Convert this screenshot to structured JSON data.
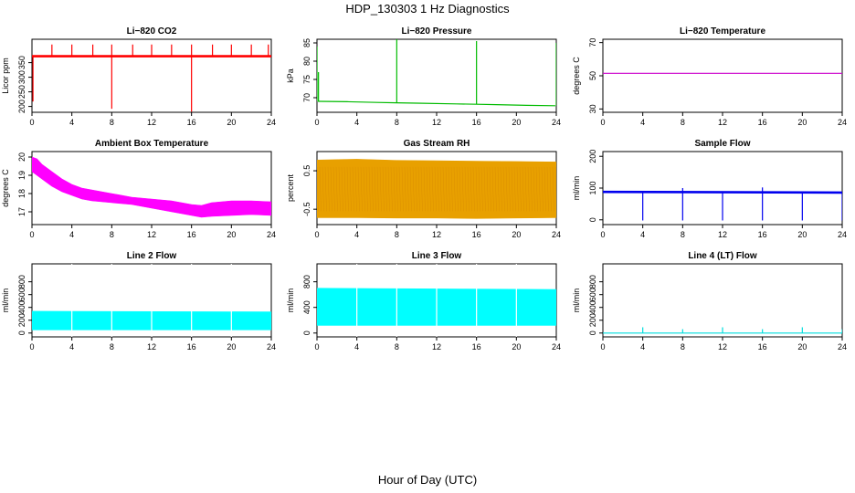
{
  "page": {
    "title": "HDP_130303  1 Hz Diagnostics",
    "xlabel": "Hour of Day (UTC)"
  },
  "chart_data": [
    {
      "type": "line",
      "title": "Li−820 CO2",
      "ylabel": "Licor ppm",
      "color": "#ff0000",
      "xlim": [
        0,
        24
      ],
      "ylim": [
        180,
        430
      ],
      "xticks": [
        0,
        4,
        8,
        12,
        16,
        20,
        24
      ],
      "yticks": [
        200,
        250,
        300,
        350
      ],
      "base": {
        "x": [
          0,
          24
        ],
        "y": [
          372,
          372
        ]
      },
      "spikes": [
        {
          "x": 0.1,
          "y": 217
        },
        {
          "x": 2.0,
          "y": 412
        },
        {
          "x": 4.0,
          "y": 412
        },
        {
          "x": 6.1,
          "y": 412
        },
        {
          "x": 8.0,
          "y": 412
        },
        {
          "x": 8.0,
          "y": 192
        },
        {
          "x": 10.1,
          "y": 412
        },
        {
          "x": 12.0,
          "y": 412
        },
        {
          "x": 14.0,
          "y": 412
        },
        {
          "x": 16.0,
          "y": 412
        },
        {
          "x": 16.0,
          "y": 182
        },
        {
          "x": 18.1,
          "y": 412
        },
        {
          "x": 20.0,
          "y": 412
        },
        {
          "x": 22.0,
          "y": 412
        },
        {
          "x": 23.7,
          "y": 412
        }
      ]
    },
    {
      "type": "line",
      "title": "Li−820 Pressure",
      "ylabel": "kPa",
      "color": "#00bb00",
      "xlim": [
        0,
        24
      ],
      "ylim": [
        66,
        86
      ],
      "xticks": [
        0,
        4,
        8,
        12,
        16,
        20,
        24
      ],
      "yticks": [
        70,
        75,
        80,
        85
      ],
      "base": {
        "x": [
          0.1,
          3,
          6,
          8,
          10,
          14,
          16,
          18,
          21,
          23.9
        ],
        "y": [
          69.0,
          68.9,
          68.7,
          68.6,
          68.5,
          68.3,
          68.2,
          68.1,
          67.9,
          67.8
        ]
      },
      "spikes": [
        {
          "x": 0.0,
          "y": 84
        },
        {
          "x": 0.15,
          "y": 77
        },
        {
          "x": 8.0,
          "y": 86
        },
        {
          "x": 16.0,
          "y": 85.5
        },
        {
          "x": 24.0,
          "y": 85
        }
      ]
    },
    {
      "type": "line",
      "title": "Li−820 Temperature",
      "ylabel": "degrees C",
      "color": "#cc00cc",
      "xlim": [
        0,
        24
      ],
      "ylim": [
        28,
        72
      ],
      "xticks": [
        0,
        4,
        8,
        12,
        16,
        20,
        24
      ],
      "yticks": [
        30,
        50,
        70
      ],
      "base": {
        "x": [
          0,
          24
        ],
        "y": [
          51.5,
          51.5
        ]
      },
      "spikes": []
    },
    {
      "type": "area",
      "title": "Ambient Box Temperature",
      "ylabel": "degrees C",
      "color": "#ff00ff",
      "xlim": [
        0,
        24
      ],
      "ylim": [
        16.3,
        20.3
      ],
      "xticks": [
        0,
        4,
        8,
        12,
        16,
        20,
        24
      ],
      "yticks": [
        17,
        18,
        19,
        20
      ],
      "band": {
        "x": [
          0,
          0.5,
          1,
          2,
          3,
          4,
          5,
          6,
          8,
          10,
          12,
          14,
          15,
          16,
          17,
          18,
          20,
          22,
          24
        ],
        "low": [
          19.2,
          19.0,
          18.8,
          18.4,
          18.1,
          17.9,
          17.7,
          17.6,
          17.5,
          17.4,
          17.2,
          17.0,
          16.9,
          16.8,
          16.7,
          16.75,
          16.8,
          16.85,
          16.8
        ],
        "high": [
          20.0,
          19.9,
          19.6,
          19.2,
          18.8,
          18.5,
          18.3,
          18.2,
          18.0,
          17.8,
          17.7,
          17.6,
          17.5,
          17.4,
          17.35,
          17.5,
          17.6,
          17.6,
          17.55
        ]
      }
    },
    {
      "type": "area",
      "title": "Gas Stream RH",
      "ylabel": "percent",
      "color": "#e8a000",
      "xlim": [
        0,
        24
      ],
      "ylim": [
        -0.9,
        1.0
      ],
      "xticks": [
        0,
        4,
        8,
        12,
        16,
        20,
        24
      ],
      "yticks": [
        -0.5,
        0.5
      ],
      "band": {
        "x": [
          0,
          4,
          8,
          12,
          16,
          20,
          24
        ],
        "low": [
          -0.72,
          -0.72,
          -0.73,
          -0.73,
          -0.74,
          -0.73,
          -0.72
        ],
        "high": [
          0.78,
          0.8,
          0.77,
          0.76,
          0.75,
          0.74,
          0.73
        ]
      }
    },
    {
      "type": "line",
      "title": "Sample Flow",
      "ylabel": "ml/min",
      "color": "#0000ee",
      "xlim": [
        0,
        24
      ],
      "ylim": [
        -15,
        215
      ],
      "xticks": [
        0,
        4,
        8,
        12,
        16,
        20,
        24
      ],
      "yticks": [
        0,
        100,
        200
      ],
      "base": {
        "x": [
          0,
          24
        ],
        "y": [
          88,
          86
        ]
      },
      "spikes": [
        {
          "x": 4.0,
          "y": -2
        },
        {
          "x": 8.0,
          "y": -2
        },
        {
          "x": 8.0,
          "y": 100
        },
        {
          "x": 12.0,
          "y": -2
        },
        {
          "x": 16.0,
          "y": -2
        },
        {
          "x": 16.0,
          "y": 102
        },
        {
          "x": 20.0,
          "y": -2
        },
        {
          "x": 24.0,
          "y": -2
        }
      ]
    },
    {
      "type": "area",
      "title": "Line 2 Flow",
      "ylabel": "ml/min",
      "color": "#00ffff",
      "xlim": [
        0,
        24
      ],
      "ylim": [
        -60,
        1080
      ],
      "xticks": [
        0,
        4,
        8,
        12,
        16,
        20,
        24
      ],
      "yticks": [
        0,
        200,
        400,
        600,
        800
      ],
      "band": {
        "x": [
          0,
          24
        ],
        "low": [
          50,
          50
        ],
        "high": [
          340,
          330
        ]
      },
      "gaps": [
        4,
        8,
        12,
        16,
        20
      ]
    },
    {
      "type": "area",
      "title": "Line 3 Flow",
      "ylabel": "ml/min",
      "color": "#00ffff",
      "xlim": [
        0,
        24
      ],
      "ylim": [
        -60,
        1080
      ],
      "xticks": [
        0,
        4,
        8,
        12,
        16,
        20,
        24
      ],
      "yticks": [
        0,
        400,
        800
      ],
      "band": {
        "x": [
          0,
          24
        ],
        "low": [
          120,
          120
        ],
        "high": [
          700,
          680
        ]
      },
      "gaps": [
        4,
        8,
        12,
        16,
        20
      ]
    },
    {
      "type": "line",
      "title": "Line 4 (LT) Flow",
      "ylabel": "ml/min",
      "color": "#00dddd",
      "xlim": [
        0,
        24
      ],
      "ylim": [
        -60,
        1080
      ],
      "xticks": [
        0,
        4,
        8,
        12,
        16,
        20,
        24
      ],
      "yticks": [
        0,
        200,
        400,
        600,
        800
      ],
      "base": {
        "x": [
          0,
          24
        ],
        "y": [
          0,
          0
        ]
      },
      "spikes": [
        {
          "x": 4.0,
          "y": 90
        },
        {
          "x": 8.0,
          "y": 60
        },
        {
          "x": 12.0,
          "y": 90
        },
        {
          "x": 16.0,
          "y": 60
        },
        {
          "x": 20.0,
          "y": 90
        },
        {
          "x": 24.0,
          "y": 60
        }
      ]
    }
  ]
}
